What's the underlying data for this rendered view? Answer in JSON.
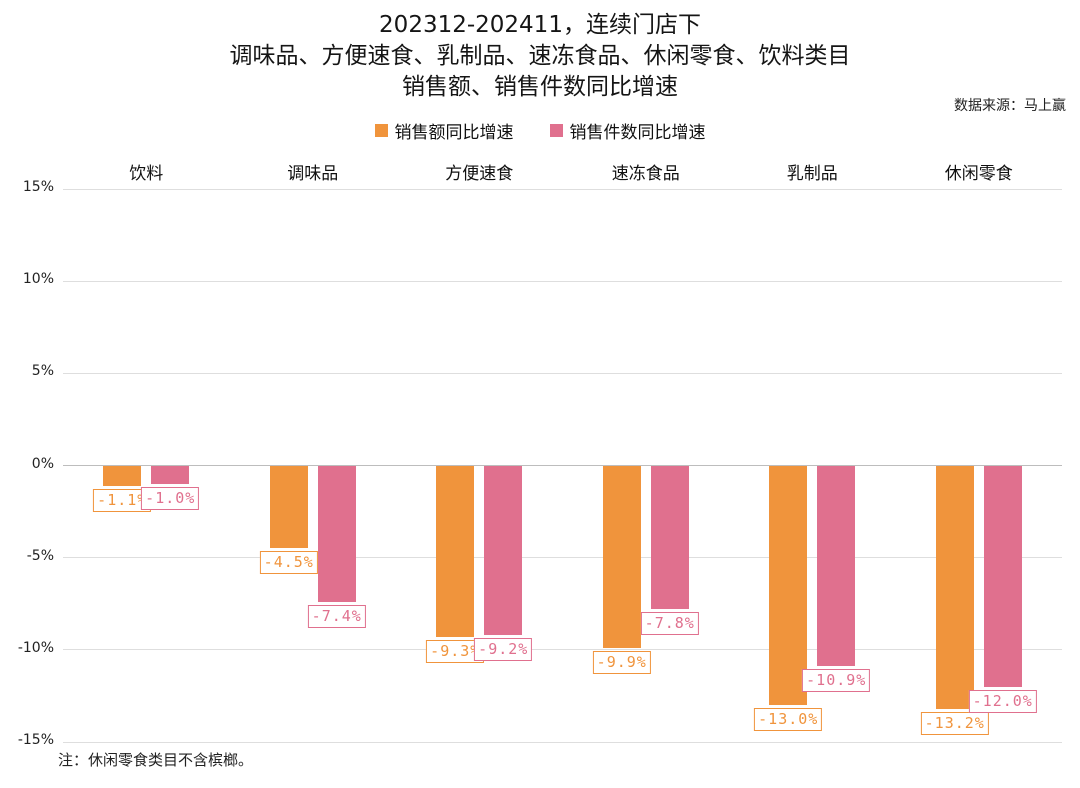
{
  "title": {
    "line1": "202312-202411，连续门店下",
    "line2": "调味品、方便速食、乳制品、速冻食品、休闲零食、饮料类目",
    "line3": "销售额、销售件数同比增速"
  },
  "source": "数据来源：马上赢",
  "note": "注：休闲零食类目不含槟榔。",
  "chart_data": {
    "type": "bar",
    "categories": [
      "饮料",
      "调味品",
      "方便速食",
      "速冻食品",
      "乳制品",
      "休闲零食"
    ],
    "series": [
      {
        "name": "销售额同比增速",
        "color": "#F0943C",
        "values": [
          -1.1,
          -4.5,
          -9.3,
          -9.9,
          -13.0,
          -13.2
        ]
      },
      {
        "name": "销售件数同比增速",
        "color": "#E0708E",
        "values": [
          -1.0,
          -7.4,
          -9.2,
          -7.8,
          -10.9,
          -12.0
        ]
      }
    ],
    "value_label_format": "one-decimal-percent",
    "yticks": [
      15,
      10,
      5,
      0,
      -5,
      -10,
      -15
    ],
    "ytick_suffix": "%",
    "ylim": [
      -15,
      15
    ],
    "grid": true,
    "legend_position": "top-center",
    "colors": {
      "grid": "#DEDEDE",
      "zero_line": "#BDBDBD",
      "text": "#1A1A1A"
    }
  }
}
